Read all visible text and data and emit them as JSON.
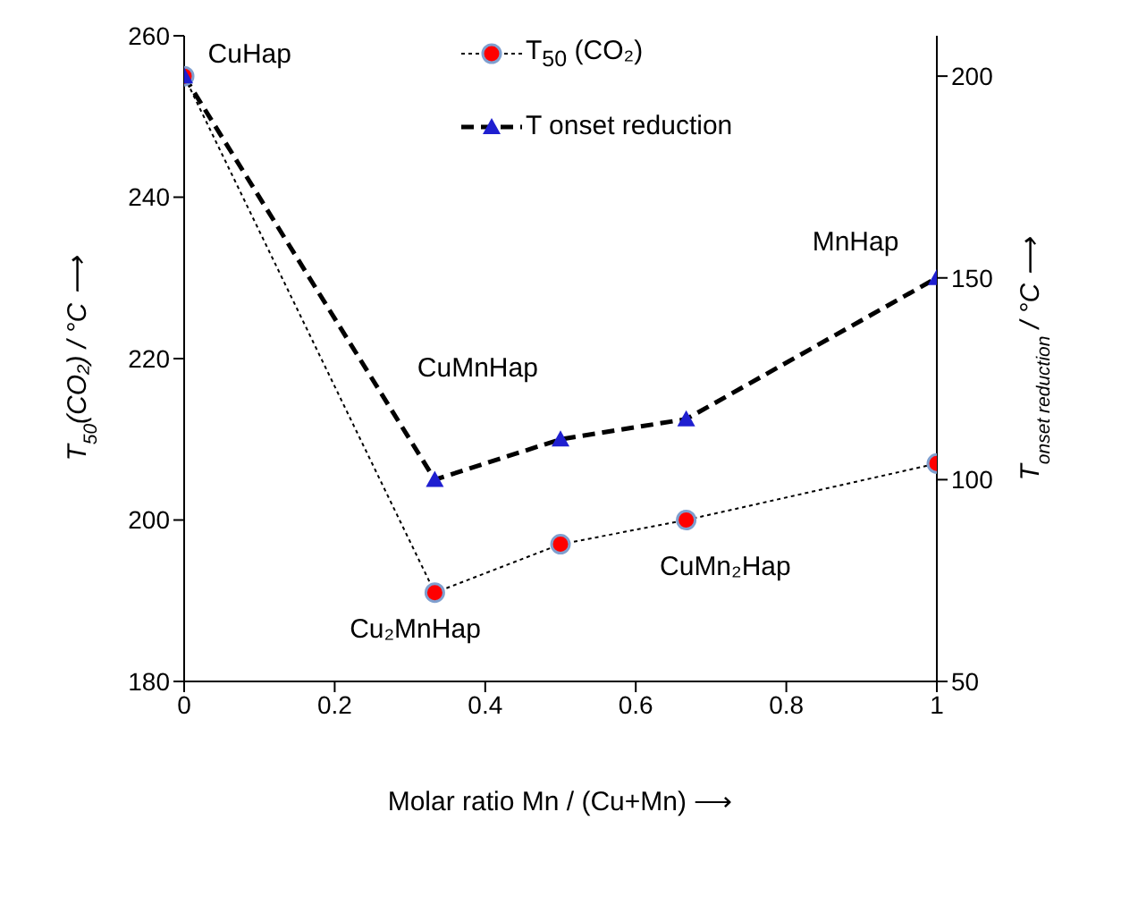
{
  "chart_data": {
    "type": "line",
    "xlabel": "Molar ratio Mn / (Cu+Mn) ⟶",
    "ylabel": "T$_{50}$(CO₂) / °C   ⟶",
    "y2label": "T$_{onset reduction}$ / °C   ⟶",
    "x": [
      0,
      0.333,
      0.5,
      0.667,
      1
    ],
    "series": [
      {
        "name": "T$_{50}$ (CO₂)",
        "color": "#ff0000",
        "values": [
          255,
          191,
          197,
          200,
          207
        ],
        "marker": "circle",
        "line_style": "dotted"
      },
      {
        "name": "T onset reduction",
        "color": "#1f1fd0",
        "values": [
          200,
          100,
          110,
          115,
          150
        ],
        "marker": "triangle",
        "line_style": "dashed",
        "axis": "y2"
      }
    ],
    "xlim": [
      0,
      1
    ],
    "xticks": [
      0,
      0.2,
      0.4,
      0.6,
      0.8,
      1
    ],
    "ylim": [
      180,
      260
    ],
    "yticks": [
      180,
      200,
      220,
      240,
      260
    ],
    "y2lim": [
      50,
      210
    ],
    "y2ticks": [
      50,
      100,
      150,
      200
    ],
    "legend": "top",
    "grid": false,
    "annotations": [
      "CuHap",
      "CuMnHap",
      "MnHap",
      "Cu₂MnHap",
      "CuMn₂Hap"
    ]
  }
}
